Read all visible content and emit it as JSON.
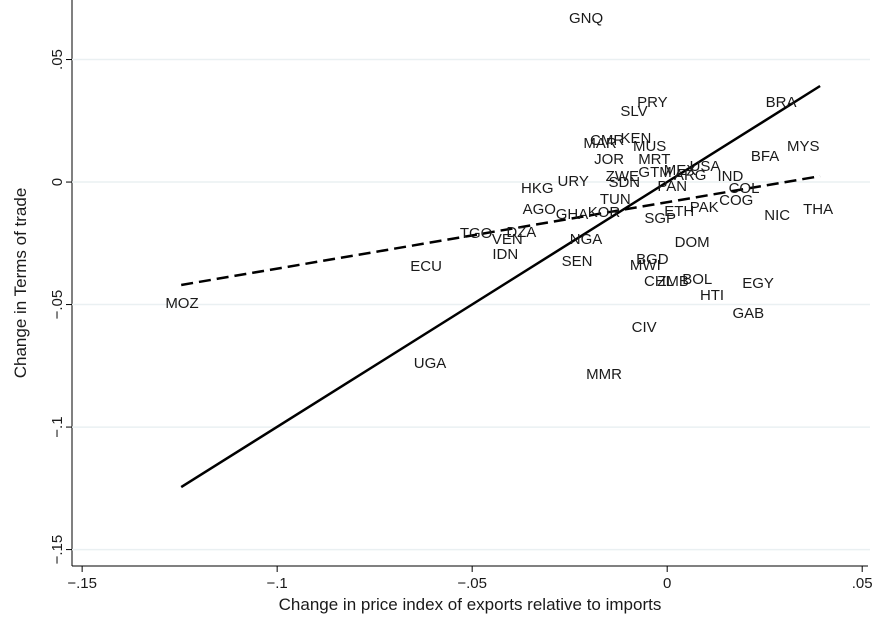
{
  "chart_data": {
    "type": "scatter",
    "x_label": "Change in price index of exports relative to imports",
    "y_label": "Change in Terms of trade",
    "xlim": [
      -0.1526,
      0.052
    ],
    "ylim": [
      -0.1567,
      0.0743
    ],
    "xticks": [
      {
        "value": -0.15,
        "label": "−.15"
      },
      {
        "value": -0.1,
        "label": "−.1"
      },
      {
        "value": -0.05,
        "label": "−.05"
      },
      0,
      {
        "value": 0.05,
        "label": ".05"
      }
    ],
    "yticks": [
      {
        "value": -0.15,
        "label": "−.15"
      },
      {
        "value": -0.1,
        "label": "−.1"
      },
      {
        "value": -0.05,
        "label": "−.05"
      },
      0,
      {
        "value": 0.05,
        "label": ".05"
      }
    ],
    "grid": true,
    "color": "#1a1a1a",
    "labels": [
      "GNQ",
      "PRY",
      "BRA",
      "SLV",
      "MYS",
      "BFA",
      "CMR",
      "KEN",
      "MAR",
      "MUS",
      "JOR",
      "MRT",
      "GTM",
      "MEX",
      "USA",
      "ARG",
      "IND",
      "ZWE",
      "SDN",
      "PAN",
      "HKG",
      "URY",
      "COL",
      "TUN",
      "COG",
      "AGO",
      "GHA",
      "KOR",
      "ETH",
      "PAK",
      "SGP",
      "NIC",
      "THA",
      "TGO",
      "DZA",
      "VEN",
      "NGA",
      "DOM",
      "IDN",
      "ECU",
      "SEN",
      "BGD",
      "MWI",
      "CHL",
      "ZMB",
      "BOL",
      "EGY",
      "HTI",
      "GAB",
      "MOZ",
      "CIV",
      "UGA",
      "MMR"
    ],
    "x": [
      -0.0208,
      -0.0038,
      0.0292,
      -0.0085,
      0.0349,
      0.0251,
      -0.0154,
      -0.008,
      -0.0172,
      -0.0045,
      -0.0149,
      -0.0033,
      -0.0031,
      0.0033,
      0.0097,
      0.0059,
      0.0162,
      -0.0115,
      -0.011,
      0.0013,
      -0.0333,
      -0.0241,
      0.0197,
      -0.0133,
      0.0177,
      -0.0328,
      -0.0244,
      -0.0162,
      0.0031,
      0.0095,
      -0.0018,
      0.0282,
      0.0387,
      -0.049,
      -0.0374,
      -0.041,
      -0.0208,
      0.0064,
      -0.0415,
      -0.0618,
      -0.0231,
      -0.0038,
      -0.0056,
      -0.0021,
      0.0015,
      0.0077,
      0.0233,
      0.0115,
      0.0208,
      -0.1244,
      -0.0059,
      -0.0608,
      -0.0162
    ],
    "y": [
      0.0669,
      0.0327,
      0.0327,
      0.029,
      0.0147,
      0.0106,
      0.0171,
      0.018,
      0.0159,
      0.0147,
      0.0094,
      0.0094,
      0.0041,
      0.0049,
      0.0065,
      0.0029,
      0.0024,
      0.0024,
      0,
      -0.0016,
      -0.0024,
      0.0004,
      -0.0024,
      -0.0069,
      -0.0073,
      -0.011,
      -0.0131,
      -0.0122,
      -0.0118,
      -0.0102,
      -0.0147,
      -0.0135,
      -0.011,
      -0.0208,
      -0.0204,
      -0.0233,
      -0.0233,
      -0.0245,
      -0.0294,
      -0.0343,
      -0.0322,
      -0.0314,
      -0.0339,
      -0.0404,
      -0.0404,
      -0.0396,
      -0.0412,
      -0.0461,
      -0.0535,
      -0.0494,
      -0.0592,
      -0.0739,
      -0.0784
    ],
    "lines": [
      {
        "style": "solid",
        "x": [
          -0.1246,
          0.0392
        ],
        "y": [
          -0.1245,
          0.0392
        ]
      },
      {
        "style": "dashed",
        "x": [
          -0.1246,
          0.0392
        ],
        "y": [
          -0.042,
          0.0024
        ]
      }
    ]
  }
}
